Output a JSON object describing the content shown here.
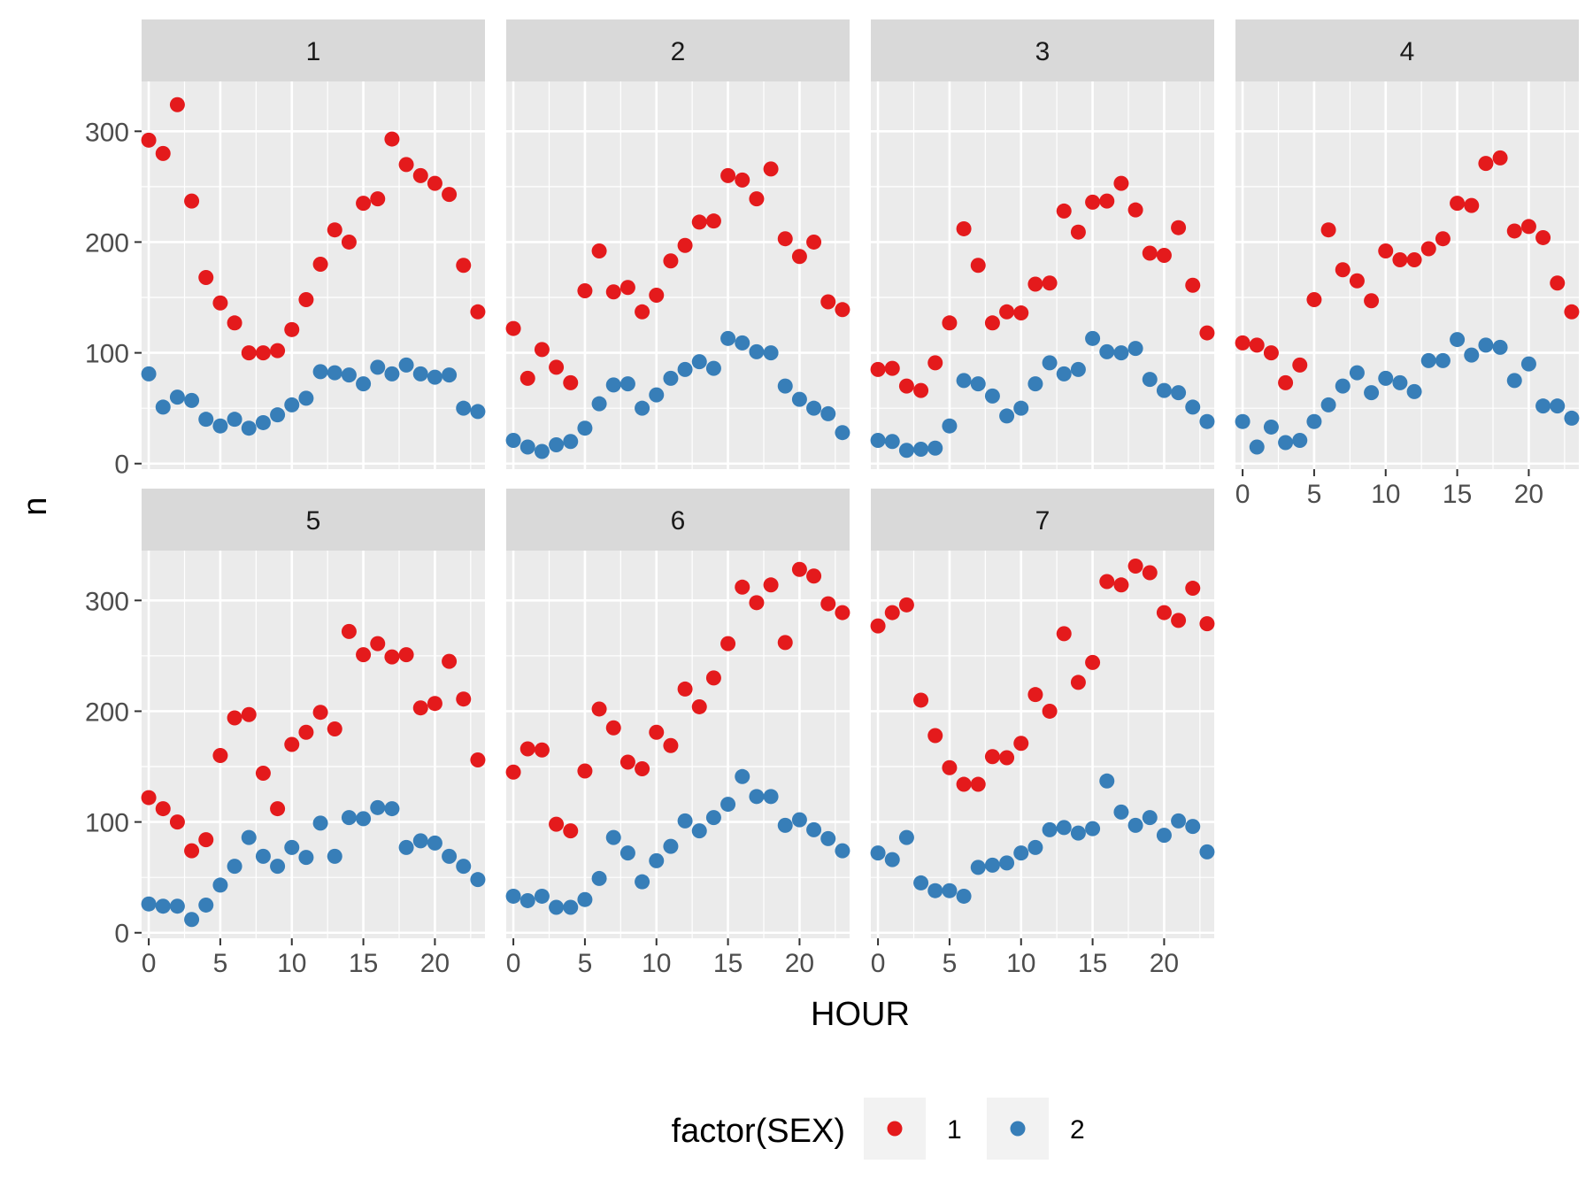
{
  "chart_data": {
    "type": "scatter",
    "xlabel": "HOUR",
    "ylabel": "n",
    "xlim": [
      -0.5,
      23.5
    ],
    "ylim": [
      0,
      330
    ],
    "x_ticks": [
      0,
      5,
      10,
      15,
      20
    ],
    "y_ticks": [
      0,
      100,
      200,
      300
    ],
    "grid": true,
    "legend": {
      "title": "factor(SEX)",
      "placement": "bottom",
      "entries": [
        {
          "label": "1",
          "color": "#E41A1C"
        },
        {
          "label": "2",
          "color": "#377EB8"
        }
      ]
    },
    "x": [
      0,
      1,
      2,
      3,
      4,
      5,
      6,
      7,
      8,
      9,
      10,
      11,
      12,
      13,
      14,
      15,
      16,
      17,
      18,
      19,
      20,
      21,
      22,
      23
    ],
    "panels": [
      {
        "label": "1",
        "series": [
          {
            "name": "1",
            "values": [
              292,
              280,
              324,
              237,
              168,
              145,
              127,
              100,
              100,
              102,
              121,
              148,
              180,
              211,
              200,
              235,
              239,
              293,
              270,
              260,
              253,
              243,
              179,
              137
            ]
          },
          {
            "name": "2",
            "values": [
              81,
              51,
              60,
              57,
              40,
              34,
              40,
              32,
              37,
              44,
              53,
              59,
              83,
              82,
              80,
              72,
              87,
              81,
              89,
              81,
              78,
              80,
              50,
              47
            ]
          }
        ]
      },
      {
        "label": "2",
        "series": [
          {
            "name": "1",
            "values": [
              122,
              77,
              103,
              87,
              73,
              156,
              192,
              155,
              159,
              137,
              152,
              183,
              197,
              218,
              219,
              260,
              256,
              239,
              266,
              203,
              187,
              200,
              146,
              139
            ]
          },
          {
            "name": "2",
            "values": [
              21,
              15,
              11,
              17,
              20,
              32,
              54,
              71,
              72,
              50,
              62,
              77,
              85,
              92,
              86,
              113,
              109,
              101,
              100,
              70,
              58,
              50,
              45,
              28
            ]
          }
        ]
      },
      {
        "label": "3",
        "series": [
          {
            "name": "1",
            "values": [
              85,
              86,
              70,
              66,
              91,
              127,
              212,
              179,
              127,
              137,
              136,
              162,
              163,
              228,
              209,
              236,
              237,
              253,
              229,
              190,
              188,
              213,
              161,
              118
            ]
          },
          {
            "name": "2",
            "values": [
              21,
              20,
              12,
              13,
              14,
              34,
              75,
              72,
              61,
              43,
              50,
              72,
              91,
              81,
              85,
              113,
              101,
              100,
              104,
              76,
              66,
              64,
              51,
              38
            ]
          }
        ]
      },
      {
        "label": "4",
        "series": [
          {
            "name": "1",
            "values": [
              109,
              107,
              100,
              73,
              89,
              148,
              211,
              175,
              165,
              147,
              192,
              184,
              184,
              194,
              203,
              235,
              233,
              271,
              276,
              210,
              214,
              204,
              163,
              137
            ]
          },
          {
            "name": "2",
            "values": [
              38,
              15,
              33,
              19,
              21,
              38,
              53,
              70,
              82,
              64,
              77,
              73,
              65,
              93,
              93,
              112,
              98,
              107,
              105,
              75,
              90,
              52,
              52,
              41
            ]
          }
        ]
      },
      {
        "label": "5",
        "series": [
          {
            "name": "1",
            "values": [
              122,
              112,
              100,
              74,
              84,
              160,
              194,
              197,
              144,
              112,
              170,
              181,
              199,
              184,
              272,
              251,
              261,
              249,
              251,
              203,
              207,
              245,
              211,
              156
            ]
          },
          {
            "name": "2",
            "values": [
              26,
              24,
              24,
              12,
              25,
              43,
              60,
              86,
              69,
              60,
              77,
              68,
              99,
              69,
              104,
              103,
              113,
              112,
              77,
              83,
              81,
              69,
              60,
              48
            ]
          }
        ]
      },
      {
        "label": "6",
        "series": [
          {
            "name": "1",
            "values": [
              145,
              166,
              165,
              98,
              92,
              146,
              202,
              185,
              154,
              148,
              181,
              169,
              220,
              204,
              230,
              261,
              312,
              298,
              314,
              262,
              328,
              322,
              297,
              289
            ]
          },
          {
            "name": "2",
            "values": [
              33,
              29,
              33,
              23,
              23,
              30,
              49,
              86,
              72,
              46,
              65,
              78,
              101,
              92,
              104,
              116,
              141,
              123,
              123,
              97,
              102,
              93,
              85,
              74
            ]
          }
        ]
      },
      {
        "label": "7",
        "series": [
          {
            "name": "1",
            "values": [
              277,
              289,
              296,
              210,
              178,
              149,
              134,
              134,
              159,
              158,
              171,
              215,
              200,
              270,
              226,
              244,
              317,
              314,
              331,
              325,
              289,
              282,
              311,
              279
            ]
          },
          {
            "name": "2",
            "values": [
              72,
              66,
              86,
              45,
              38,
              38,
              33,
              59,
              61,
              63,
              72,
              77,
              93,
              95,
              90,
              94,
              137,
              109,
              97,
              104,
              88,
              101,
              96,
              73
            ]
          }
        ]
      }
    ]
  }
}
